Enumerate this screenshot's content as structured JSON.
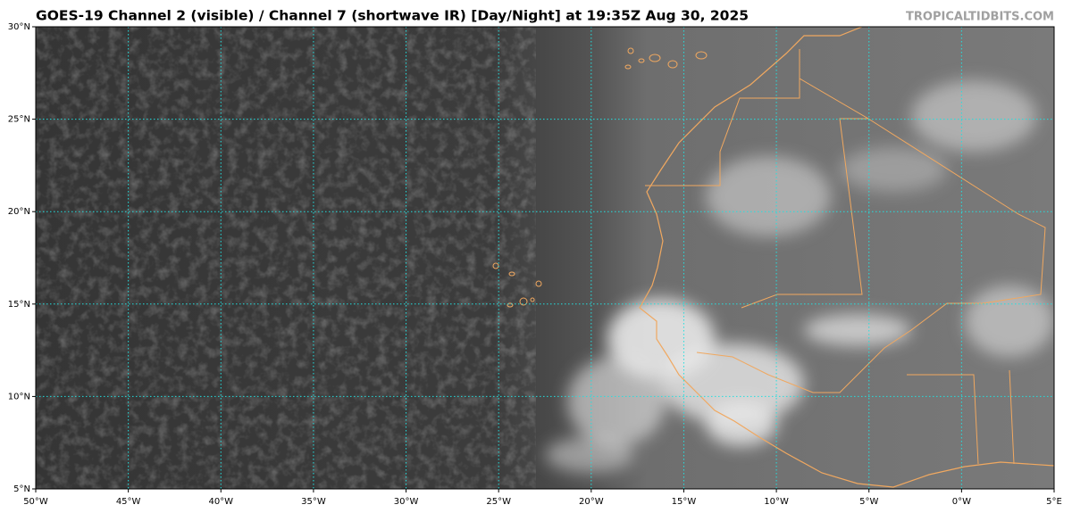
{
  "title": "GOES-19 Channel 2 (visible) / Channel 7 (shortwave IR) [Day/Night] at 19:35Z Aug 30, 2025",
  "credit": "TROPICALTIDBITS.COM",
  "map": {
    "lonlim": [
      -50,
      5
    ],
    "latlim": [
      5,
      30
    ],
    "lon_ticks": [
      {
        "value": -50,
        "label": "50°W"
      },
      {
        "value": -45,
        "label": "45°W"
      },
      {
        "value": -40,
        "label": "40°W"
      },
      {
        "value": -35,
        "label": "35°W"
      },
      {
        "value": -30,
        "label": "30°W"
      },
      {
        "value": -25,
        "label": "25°W"
      },
      {
        "value": -20,
        "label": "20°W"
      },
      {
        "value": -15,
        "label": "15°W"
      },
      {
        "value": -10,
        "label": "10°W"
      },
      {
        "value": -5,
        "label": "5°W"
      },
      {
        "value": 0,
        "label": "0°W"
      },
      {
        "value": 5,
        "label": "5°E"
      }
    ],
    "lat_ticks": [
      {
        "value": 30,
        "label": "30°N"
      },
      {
        "value": 25,
        "label": "25°N"
      },
      {
        "value": 20,
        "label": "20°N"
      },
      {
        "value": 15,
        "label": "15°N"
      },
      {
        "value": 10,
        "label": "10°N"
      },
      {
        "value": 5,
        "label": "5°N"
      }
    ]
  }
}
